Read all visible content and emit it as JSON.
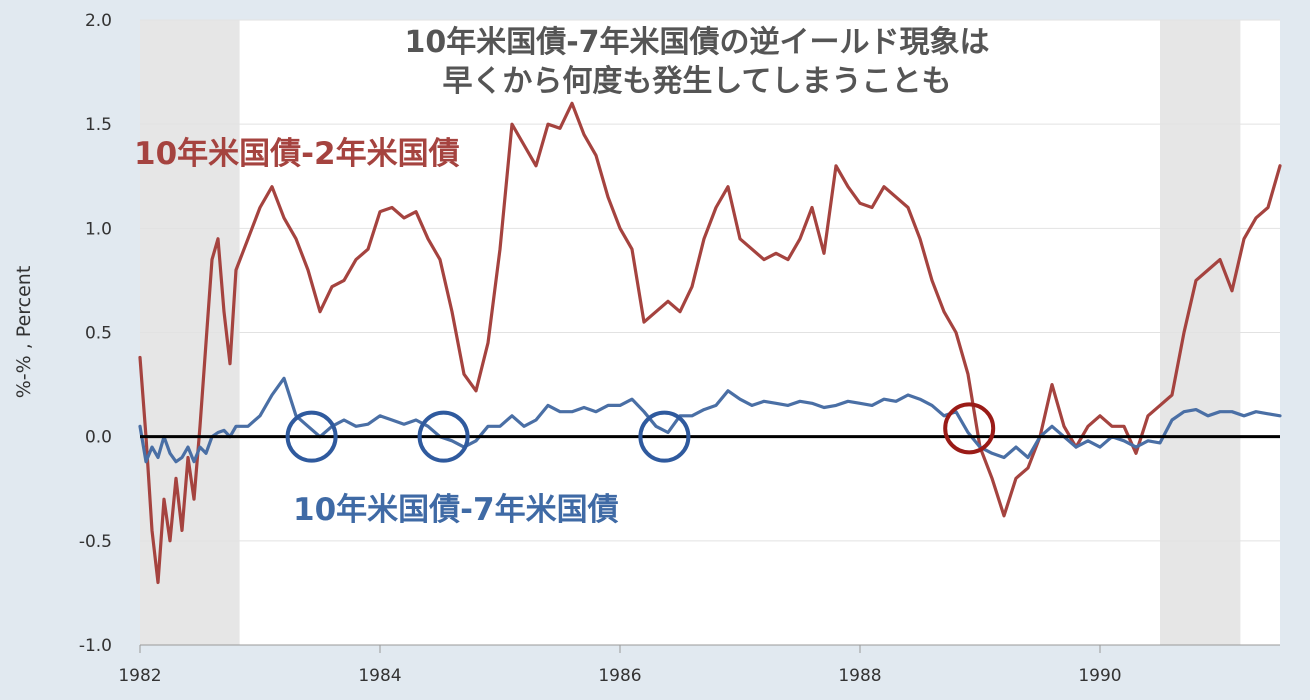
{
  "chart_data": {
    "type": "line",
    "title_lines": [
      "10年米国債-7年米国債の逆イールド現象は",
      "早くから何度も発生してしまうことも"
    ],
    "ylabel": "%-% , Percent",
    "xlabel": "",
    "xlim": [
      1982.0,
      1991.5
    ],
    "ylim": [
      -1.0,
      2.0
    ],
    "x_ticks": [
      {
        "value": 1982,
        "label": "1982"
      },
      {
        "value": 1984,
        "label": "1984"
      },
      {
        "value": 1986,
        "label": "1986"
      },
      {
        "value": 1988,
        "label": "1988"
      },
      {
        "value": 1990,
        "label": "1990"
      }
    ],
    "y_ticks": [
      {
        "value": 2.0,
        "label": "2.0"
      },
      {
        "value": 1.5,
        "label": "1.5"
      },
      {
        "value": 1.0,
        "label": "1.0"
      },
      {
        "value": 0.5,
        "label": "0.5"
      },
      {
        "value": 0.0,
        "label": "0.0"
      },
      {
        "value": -0.5,
        "label": "-0.5"
      },
      {
        "value": -1.0,
        "label": "-1.0"
      }
    ],
    "grid": true,
    "recessions": [
      [
        1982.0,
        1982.83
      ],
      [
        1990.5,
        1991.17
      ]
    ],
    "zero_line": 0,
    "colors": {
      "series_2y": "#a5433f",
      "series_7y": "#4a6fa5",
      "blue_circle": "#2f5a9e",
      "red_circle": "#9a1b17",
      "recession": "#e6e6e6",
      "zero_line": "#000000"
    },
    "series": [
      {
        "id": "spread_10y_2y",
        "name": "10年米国債-2年米国債",
        "x": [
          1982.0,
          1982.05,
          1982.1,
          1982.15,
          1982.2,
          1982.25,
          1982.3,
          1982.35,
          1982.4,
          1982.45,
          1982.5,
          1982.55,
          1982.6,
          1982.65,
          1982.7,
          1982.75,
          1982.8,
          1982.9,
          1983.0,
          1983.1,
          1983.2,
          1983.3,
          1983.4,
          1983.5,
          1983.6,
          1983.7,
          1983.8,
          1983.9,
          1984.0,
          1984.1,
          1984.2,
          1984.3,
          1984.4,
          1984.5,
          1984.6,
          1984.7,
          1984.8,
          1984.9,
          1985.0,
          1985.1,
          1985.2,
          1985.3,
          1985.4,
          1985.5,
          1985.6,
          1985.7,
          1985.8,
          1985.9,
          1986.0,
          1986.1,
          1986.2,
          1986.3,
          1986.4,
          1986.5,
          1986.6,
          1986.7,
          1986.8,
          1986.9,
          1987.0,
          1987.1,
          1987.2,
          1987.3,
          1987.4,
          1987.5,
          1987.6,
          1987.7,
          1987.8,
          1987.9,
          1988.0,
          1988.1,
          1988.2,
          1988.3,
          1988.4,
          1988.5,
          1988.6,
          1988.7,
          1988.8,
          1988.9,
          1989.0,
          1989.1,
          1989.2,
          1989.3,
          1989.4,
          1989.5,
          1989.6,
          1989.7,
          1989.8,
          1989.9,
          1990.0,
          1990.1,
          1990.2,
          1990.3,
          1990.4,
          1990.5,
          1990.6,
          1990.7,
          1990.8,
          1990.9,
          1991.0,
          1991.1,
          1991.2,
          1991.3,
          1991.4,
          1991.5
        ],
        "values": [
          0.38,
          0.0,
          -0.45,
          -0.7,
          -0.3,
          -0.5,
          -0.2,
          -0.45,
          -0.1,
          -0.3,
          0.05,
          0.45,
          0.85,
          0.95,
          0.6,
          0.35,
          0.8,
          0.95,
          1.1,
          1.2,
          1.05,
          0.95,
          0.8,
          0.6,
          0.72,
          0.75,
          0.85,
          0.9,
          1.08,
          1.1,
          1.05,
          1.08,
          0.95,
          0.85,
          0.6,
          0.3,
          0.22,
          0.45,
          0.9,
          1.5,
          1.4,
          1.3,
          1.5,
          1.48,
          1.6,
          1.45,
          1.35,
          1.15,
          1.0,
          0.9,
          0.55,
          0.6,
          0.65,
          0.6,
          0.72,
          0.95,
          1.1,
          1.2,
          0.95,
          0.9,
          0.85,
          0.88,
          0.85,
          0.95,
          1.1,
          0.88,
          1.3,
          1.2,
          1.12,
          1.1,
          1.2,
          1.15,
          1.1,
          0.95,
          0.75,
          0.6,
          0.5,
          0.3,
          -0.05,
          -0.2,
          -0.38,
          -0.2,
          -0.15,
          0.0,
          0.25,
          0.05,
          -0.05,
          0.05,
          0.1,
          0.05,
          0.05,
          -0.08,
          0.1,
          0.15,
          0.2,
          0.5,
          0.75,
          0.8,
          0.85,
          0.7,
          0.95,
          1.05,
          1.1,
          1.3
        ]
      },
      {
        "id": "spread_10y_7y",
        "name": "10年米国債-7年米国債",
        "x": [
          1982.0,
          1982.05,
          1982.1,
          1982.15,
          1982.2,
          1982.25,
          1982.3,
          1982.35,
          1982.4,
          1982.45,
          1982.5,
          1982.55,
          1982.6,
          1982.65,
          1982.7,
          1982.75,
          1982.8,
          1982.9,
          1983.0,
          1983.1,
          1983.2,
          1983.3,
          1983.4,
          1983.5,
          1983.6,
          1983.7,
          1983.8,
          1983.9,
          1984.0,
          1984.1,
          1984.2,
          1984.3,
          1984.4,
          1984.5,
          1984.6,
          1984.7,
          1984.8,
          1984.9,
          1985.0,
          1985.1,
          1985.2,
          1985.3,
          1985.4,
          1985.5,
          1985.6,
          1985.7,
          1985.8,
          1985.9,
          1986.0,
          1986.1,
          1986.2,
          1986.3,
          1986.4,
          1986.5,
          1986.6,
          1986.7,
          1986.8,
          1986.9,
          1987.0,
          1987.1,
          1987.2,
          1987.3,
          1987.4,
          1987.5,
          1987.6,
          1987.7,
          1987.8,
          1987.9,
          1988.0,
          1988.1,
          1988.2,
          1988.3,
          1988.4,
          1988.5,
          1988.6,
          1988.7,
          1988.8,
          1988.9,
          1989.0,
          1989.1,
          1989.2,
          1989.3,
          1989.4,
          1989.5,
          1989.6,
          1989.7,
          1989.8,
          1989.9,
          1990.0,
          1990.1,
          1990.2,
          1990.3,
          1990.4,
          1990.5,
          1990.6,
          1990.7,
          1990.8,
          1990.9,
          1991.0,
          1991.1,
          1991.2,
          1991.3,
          1991.4,
          1991.5
        ],
        "values": [
          0.05,
          -0.12,
          -0.05,
          -0.1,
          0.0,
          -0.08,
          -0.12,
          -0.1,
          -0.05,
          -0.12,
          -0.05,
          -0.08,
          0.0,
          0.02,
          0.03,
          0.0,
          0.05,
          0.05,
          0.1,
          0.2,
          0.28,
          0.1,
          0.05,
          0.0,
          0.05,
          0.08,
          0.05,
          0.06,
          0.1,
          0.08,
          0.06,
          0.08,
          0.05,
          0.0,
          -0.02,
          -0.05,
          -0.02,
          0.05,
          0.05,
          0.1,
          0.05,
          0.08,
          0.15,
          0.12,
          0.12,
          0.14,
          0.12,
          0.15,
          0.15,
          0.18,
          0.12,
          0.05,
          0.02,
          0.1,
          0.1,
          0.13,
          0.15,
          0.22,
          0.18,
          0.15,
          0.17,
          0.16,
          0.15,
          0.17,
          0.16,
          0.14,
          0.15,
          0.17,
          0.16,
          0.15,
          0.18,
          0.17,
          0.2,
          0.18,
          0.15,
          0.1,
          0.12,
          0.02,
          -0.05,
          -0.08,
          -0.1,
          -0.05,
          -0.1,
          0.0,
          0.05,
          0.0,
          -0.05,
          -0.02,
          -0.05,
          0.0,
          -0.02,
          -0.05,
          -0.02,
          -0.03,
          0.08,
          0.12,
          0.13,
          0.1,
          0.12,
          0.12,
          0.1,
          0.12,
          0.11,
          0.1
        ]
      }
    ],
    "series_labels": [
      {
        "text": "10年米国債-2年米国債",
        "series": "spread_10y_2y"
      },
      {
        "text": "10年米国債-7年米国債",
        "series": "spread_10y_7y"
      }
    ],
    "annotations": [
      {
        "type": "circle",
        "x": 1983.43,
        "y": 0.0,
        "color": "blue"
      },
      {
        "type": "circle",
        "x": 1984.53,
        "y": 0.0,
        "color": "blue"
      },
      {
        "type": "circle",
        "x": 1986.37,
        "y": 0.0,
        "color": "blue"
      },
      {
        "type": "circle",
        "x": 1988.91,
        "y": 0.04,
        "color": "red"
      }
    ]
  }
}
